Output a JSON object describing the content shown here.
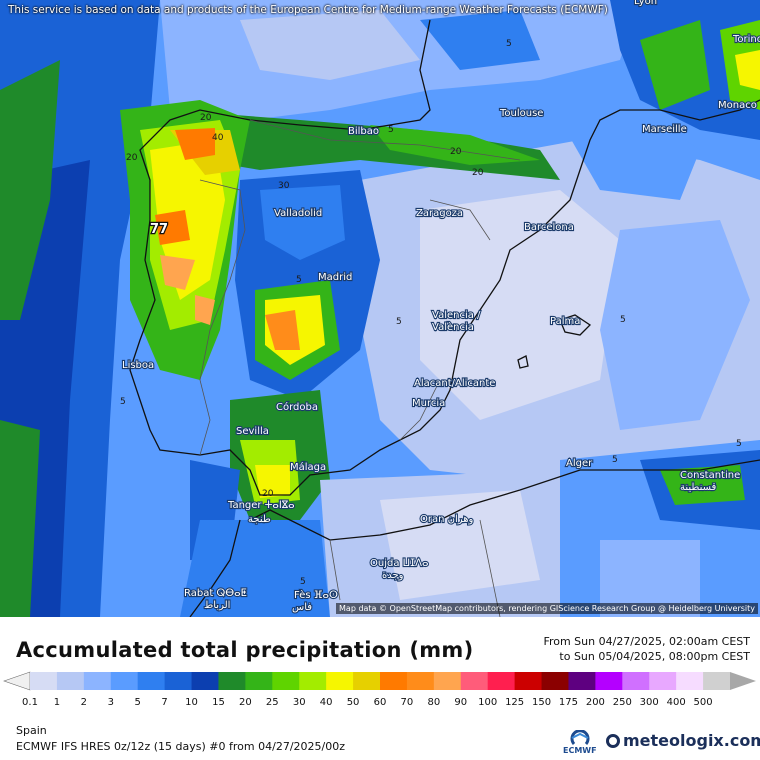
{
  "disclaimer": "This service is based on data and products of the European Centre for Medium-range Weather Forecasts (ECMWF)",
  "attribution": "Map data © OpenStreetMap contributors, rendering GIScience Research Group @ Heidelberg University",
  "title": "Accumulated total precipitation (mm)",
  "period": {
    "from": "From Sun 04/27/2025, 02:00am CEST",
    "to": "to Sun 05/04/2025, 08:00pm CEST"
  },
  "region": "Spain",
  "model": "ECMWF IFS HRES 0z/12z (15 days) #0 from 04/27/2025/00z",
  "logos": {
    "ecmwf": "ECMWF",
    "meteologix": "meteologix.com"
  },
  "max_value": "77",
  "legend": {
    "ticks": [
      "0.1",
      "1",
      "2",
      "3",
      "5",
      "7",
      "10",
      "15",
      "20",
      "25",
      "30",
      "40",
      "50",
      "60",
      "70",
      "80",
      "90",
      "100",
      "125",
      "150",
      "175",
      "200",
      "250",
      "300",
      "400",
      "500"
    ],
    "colors": [
      "#d6dcf4",
      "#b6c8f4",
      "#8cb4ff",
      "#5a9cff",
      "#2f7ff0",
      "#1a62d6",
      "#0c3fb0",
      "#1f8a2a",
      "#34b418",
      "#5fd400",
      "#a3ec00",
      "#f6f600",
      "#e6d000",
      "#ff7a00",
      "#ff8c1a",
      "#ffa54f",
      "#ff5c7a",
      "#ff1f4f",
      "#cc0000",
      "#8b0000",
      "#5e0080",
      "#b400ff",
      "#d070ff",
      "#e8a8ff",
      "#f6dcff",
      "#d0d0d0"
    ]
  },
  "cities": [
    {
      "name": "Lyon"
    },
    {
      "name": "Torino"
    },
    {
      "name": "Monaco"
    },
    {
      "name": "Toulouse"
    },
    {
      "name": "Marseille"
    },
    {
      "name": "Bilbao"
    },
    {
      "name": "Valladolid"
    },
    {
      "name": "Zaragoza"
    },
    {
      "name": "Barcelona"
    },
    {
      "name": "Madrid"
    },
    {
      "name": "Valencia /"
    },
    {
      "name": "València"
    },
    {
      "name": "Palma"
    },
    {
      "name": "Lisboa"
    },
    {
      "name": "Alacant/Alicante"
    },
    {
      "name": "Murcia"
    },
    {
      "name": "Córdoba"
    },
    {
      "name": "Sevilla"
    },
    {
      "name": "Málaga"
    },
    {
      "name": "Alger"
    },
    {
      "name": "Constantine"
    },
    {
      "name": "قسنطينة"
    },
    {
      "name": "Tanger ⵜⴰⵏⴵⴰ"
    },
    {
      "name": "طنجة"
    },
    {
      "name": "Oran وهران"
    },
    {
      "name": "Oujda ⵡⵊⴷⴰ"
    },
    {
      "name": "وجدة"
    },
    {
      "name": "Rabat ⵕⴱⴰⵟ"
    },
    {
      "name": "الرباط"
    },
    {
      "name": "Fès ⴼⴰⵙ"
    },
    {
      "name": "فاس"
    }
  ],
  "contour_labels": [
    "20",
    "40",
    "20",
    "20",
    "20",
    "20",
    "30",
    "5",
    "5",
    "5",
    "5",
    "5",
    "5",
    "5",
    "5",
    "5",
    "20",
    "20",
    "5",
    "5",
    "5",
    "5",
    "5",
    "5"
  ]
}
